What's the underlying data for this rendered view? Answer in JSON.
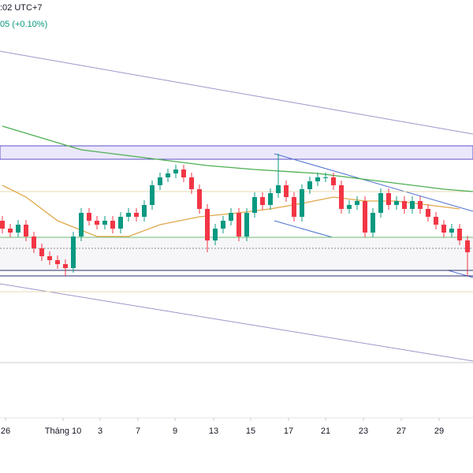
{
  "chart_data": {
    "type": "candlestick",
    "header": {
      "time": ":02 UTC+7",
      "change": "05 (+0.10%)"
    },
    "up_color": "#089981",
    "down_color": "#f23645",
    "xlim": [
      -0.3,
      59.7
    ],
    "ylim": [
      0,
      600
    ],
    "xticks": [
      {
        "value": 0.4,
        "label": "26"
      },
      {
        "value": 7.7,
        "label": "Tháng 10"
      },
      {
        "value": 12.4,
        "label": "3"
      },
      {
        "value": 17.2,
        "label": "7"
      },
      {
        "value": 21.9,
        "label": "9"
      },
      {
        "value": 26.8,
        "label": "13"
      },
      {
        "value": 31.5,
        "label": "15"
      },
      {
        "value": 36.3,
        "label": "17"
      },
      {
        "value": 41,
        "label": "21"
      },
      {
        "value": 45.8,
        "label": "23"
      },
      {
        "value": 50.6,
        "label": "27"
      },
      {
        "value": 55.4,
        "label": "29"
      }
    ],
    "open": [
      320,
      310,
      305,
      315,
      300,
      285,
      275,
      270,
      265,
      260,
      300,
      330,
      320,
      315,
      320,
      310,
      325,
      330,
      325,
      340,
      365,
      375,
      380,
      385,
      375,
      360,
      335,
      295,
      310,
      320,
      330,
      300,
      330,
      350,
      340,
      355,
      365,
      350,
      325,
      360,
      370,
      375,
      375,
      365,
      335,
      340,
      345,
      305,
      330,
      355,
      340,
      345,
      335,
      345,
      335,
      325,
      315,
      305,
      310,
      295
    ],
    "high": [
      326,
      316,
      321,
      321,
      306,
      291,
      281,
      276,
      271,
      306,
      336,
      336,
      326,
      326,
      326,
      331,
      336,
      336,
      346,
      371,
      381,
      386,
      391,
      391,
      381,
      366,
      341,
      316,
      326,
      336,
      336,
      336,
      356,
      356,
      361,
      405,
      371,
      356,
      366,
      376,
      381,
      381,
      381,
      371,
      346,
      351,
      351,
      336,
      361,
      361,
      351,
      351,
      351,
      351,
      341,
      331,
      321,
      316,
      316,
      301
    ],
    "low": [
      304,
      299,
      299,
      294,
      279,
      269,
      264,
      259,
      250,
      254,
      294,
      314,
      309,
      309,
      304,
      304,
      319,
      319,
      319,
      334,
      359,
      369,
      374,
      369,
      354,
      329,
      280,
      289,
      304,
      314,
      294,
      294,
      324,
      334,
      334,
      349,
      344,
      319,
      319,
      354,
      364,
      369,
      359,
      329,
      329,
      334,
      299,
      299,
      324,
      334,
      334,
      329,
      329,
      329,
      319,
      309,
      299,
      299,
      289,
      250
    ],
    "close": [
      310,
      305,
      315,
      300,
      285,
      275,
      270,
      265,
      260,
      300,
      330,
      320,
      315,
      320,
      310,
      325,
      330,
      325,
      340,
      365,
      375,
      380,
      385,
      375,
      360,
      335,
      295,
      310,
      320,
      330,
      300,
      330,
      350,
      340,
      355,
      365,
      350,
      325,
      360,
      370,
      375,
      375,
      365,
      335,
      340,
      345,
      305,
      330,
      355,
      340,
      345,
      335,
      345,
      335,
      325,
      315,
      305,
      310,
      295,
      280
    ],
    "series": [
      {
        "color": "#4caf50",
        "x": [
          0,
          5,
          10,
          18,
          26,
          32,
          40,
          48,
          56,
          59.7
        ],
        "values": [
          440,
          425,
          410,
          400,
          390,
          385,
          380,
          370,
          360,
          357
        ]
      },
      {
        "color": "#e0a84a",
        "x": [
          0,
          3,
          7,
          12,
          16,
          20,
          25,
          30,
          34,
          38,
          42,
          46,
          50,
          54,
          58
        ],
        "values": [
          365,
          350,
          320,
          300,
          300,
          315,
          325,
          330,
          335,
          342,
          350,
          345,
          345,
          340,
          335
        ]
      }
    ]
  }
}
